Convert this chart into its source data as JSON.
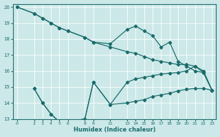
{
  "xlabel": "Humidex (Indice chaleur)",
  "background_color": "#cce8e8",
  "grid_color": "#ffffff",
  "line_color": "#1a6b6b",
  "ylim": [
    13,
    20.2
  ],
  "xlim": [
    -0.5,
    23.5
  ],
  "yticks": [
    13,
    14,
    15,
    16,
    17,
    18,
    19,
    20
  ],
  "xticks": [
    0,
    2,
    3,
    4,
    5,
    6,
    8,
    9,
    11,
    13,
    14,
    15,
    16,
    17,
    18,
    19,
    20,
    21,
    22,
    23
  ],
  "line1_x": [
    0,
    2,
    3,
    4,
    5,
    6,
    8,
    9,
    11,
    13,
    14,
    15,
    16,
    17,
    18,
    19,
    20,
    21,
    22,
    23
  ],
  "line1_y": [
    20.0,
    19.6,
    19.3,
    19.0,
    18.7,
    18.5,
    18.1,
    17.8,
    17.5,
    17.2,
    17.1,
    16.9,
    16.7,
    16.6,
    16.5,
    16.4,
    16.4,
    16.3,
    16.0,
    14.8
  ],
  "line2_x": [
    0,
    2,
    3,
    4,
    5,
    6,
    8,
    9,
    11,
    13,
    14,
    15,
    16,
    17,
    18,
    19,
    20,
    21,
    22,
    23
  ],
  "line2_y": [
    20.0,
    19.6,
    19.3,
    19.0,
    18.7,
    18.5,
    18.1,
    17.8,
    17.7,
    18.6,
    18.8,
    18.5,
    18.2,
    17.5,
    17.8,
    16.6,
    16.3,
    16.0,
    15.9,
    14.8
  ],
  "line3_x": [
    2,
    3,
    4,
    5,
    6,
    8,
    9,
    11,
    13,
    14,
    15,
    16,
    17,
    18,
    19,
    20,
    21,
    22,
    23
  ],
  "line3_y": [
    14.9,
    14.0,
    13.3,
    12.8,
    12.8,
    13.0,
    15.3,
    13.9,
    15.3,
    15.5,
    15.6,
    15.7,
    15.8,
    15.85,
    15.9,
    16.0,
    16.3,
    15.9,
    14.8
  ],
  "line4_x": [
    2,
    3,
    4,
    5,
    6,
    8,
    9,
    11,
    13,
    14,
    15,
    16,
    17,
    18,
    19,
    20,
    21,
    22,
    23
  ],
  "line4_y": [
    14.9,
    14.0,
    13.3,
    12.8,
    12.8,
    13.0,
    15.3,
    13.9,
    14.0,
    14.1,
    14.2,
    14.4,
    14.5,
    14.6,
    14.75,
    14.85,
    14.9,
    14.9,
    14.8
  ]
}
